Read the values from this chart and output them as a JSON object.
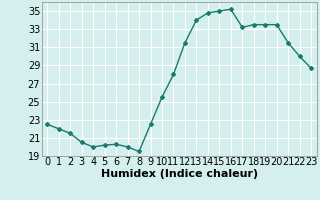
{
  "x": [
    0,
    1,
    2,
    3,
    4,
    5,
    6,
    7,
    8,
    9,
    10,
    11,
    12,
    13,
    14,
    15,
    16,
    17,
    18,
    19,
    20,
    21,
    22,
    23
  ],
  "y": [
    22.5,
    22.0,
    21.5,
    20.5,
    20.0,
    20.2,
    20.3,
    20.0,
    19.5,
    22.5,
    25.5,
    28.0,
    31.5,
    34.0,
    34.8,
    35.0,
    35.2,
    33.2,
    33.5,
    33.5,
    33.5,
    31.5,
    30.0,
    28.7
  ],
  "xlabel": "Humidex (Indice chaleur)",
  "ylim": [
    19,
    36
  ],
  "xlim": [
    -0.5,
    23.5
  ],
  "yticks": [
    19,
    21,
    23,
    25,
    27,
    29,
    31,
    33,
    35
  ],
  "xticks": [
    0,
    1,
    2,
    3,
    4,
    5,
    6,
    7,
    8,
    9,
    10,
    11,
    12,
    13,
    14,
    15,
    16,
    17,
    18,
    19,
    20,
    21,
    22,
    23
  ],
  "line_color": "#1a7a6e",
  "marker": "D",
  "marker_size": 2.0,
  "bg_color": "#d4efed",
  "grid_color": "#ffffff",
  "xlabel_fontsize": 8,
  "tick_fontsize": 7
}
